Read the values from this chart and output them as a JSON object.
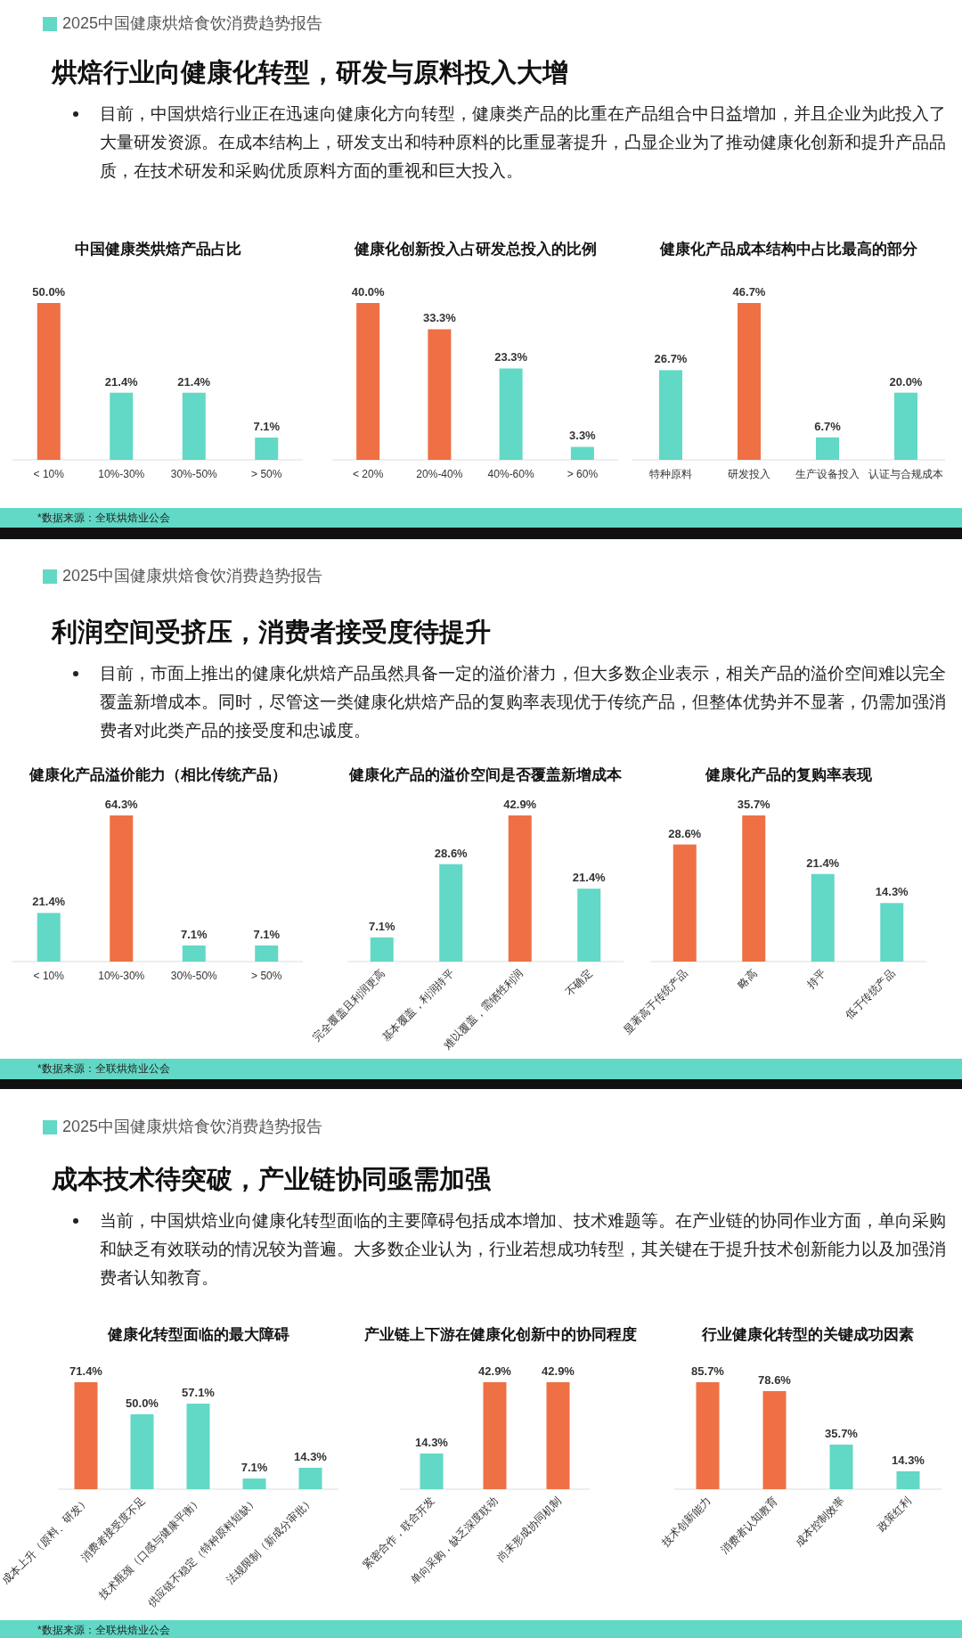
{
  "chart_data": [
    {
      "type": "other",
      "subtitle": "2025中国健康烘焙食饮消费趋势报告",
      "title": "烘焙行业向健康化转型，研发与原料投入大增",
      "annotations": [
        "目前，中国烘焙行业正在迅速向健康化方向转型，健康类产品的比重在产品组合中日益增加，并且企业为此投入了大量研发资源。在成本结构上，研发支出和特种原料的比重显著提升，凸显企业为了推动健康化创新和提升产品品质，在技术研发和采购优质原料方面的重视和巨大投入。",
        "*数据来源：全联烘焙业公会"
      ]
    },
    {
      "type": "bar",
      "title": "中国健康类烘焙产品占比",
      "categories": [
        "< 10%",
        "10%-30%",
        "30%-50%",
        "> 50%"
      ],
      "values": [
        50.0,
        21.4,
        21.4,
        7.1
      ],
      "value_labels": [
        "50.0%",
        "21.4%",
        "21.4%",
        "7.1%"
      ],
      "colors": [
        "#ee7044",
        "#62d8c6",
        "#62d8c6",
        "#62d8c6"
      ]
    },
    {
      "type": "bar",
      "title": "健康化创新投入占研发总投入的比例",
      "categories": [
        "< 20%",
        "20%-40%",
        "40%-60%",
        "> 60%"
      ],
      "values": [
        40.0,
        33.3,
        23.3,
        3.3
      ],
      "value_labels": [
        "40.0%",
        "33.3%",
        "23.3%",
        "3.3%"
      ],
      "colors": [
        "#ee7044",
        "#ee7044",
        "#62d8c6",
        "#62d8c6"
      ]
    },
    {
      "type": "bar",
      "title": "健康化产品成本结构中占比最高的部分",
      "categories": [
        "特种原料",
        "研发投入",
        "生产设备投入",
        "认证与合规成本"
      ],
      "values": [
        26.7,
        46.7,
        6.7,
        20.0
      ],
      "value_labels": [
        "26.7%",
        "46.7%",
        "6.7%",
        "20.0%"
      ],
      "colors": [
        "#62d8c6",
        "#ee7044",
        "#62d8c6",
        "#62d8c6"
      ]
    },
    {
      "type": "other",
      "subtitle": "2025中国健康烘焙食饮消费趋势报告",
      "title": "利润空间受挤压，消费者接受度待提升",
      "annotations": [
        "目前，市面上推出的健康化烘焙产品虽然具备一定的溢价潜力，但大多数企业表示，相关产品的溢价空间难以完全覆盖新增成本。同时，尽管这一类健康化烘焙产品的复购率表现优于传统产品，但整体优势并不显著，仍需加强消费者对此类产品的接受度和忠诚度。",
        "*数据来源：全联烘焙业公会"
      ]
    },
    {
      "type": "bar",
      "title": "健康化产品溢价能力（相比传统产品）",
      "categories": [
        "< 10%",
        "10%-30%",
        "30%-50%",
        "> 50%"
      ],
      "values": [
        21.4,
        64.3,
        7.1,
        7.1
      ],
      "value_labels": [
        "21.4%",
        "64.3%",
        "7.1%",
        "7.1%"
      ],
      "colors": [
        "#62d8c6",
        "#ee7044",
        "#62d8c6",
        "#62d8c6"
      ]
    },
    {
      "type": "bar",
      "title": "健康化产品的溢价空间是否覆盖新增成本",
      "categories": [
        "完全覆盖且利润更高",
        "基本覆盖，利润持平",
        "难以覆盖，需牺牲利润",
        "不确定"
      ],
      "values": [
        7.1,
        28.6,
        42.9,
        21.4
      ],
      "value_labels": [
        "7.1%",
        "28.6%",
        "42.9%",
        "21.4%"
      ],
      "colors": [
        "#62d8c6",
        "#62d8c6",
        "#ee7044",
        "#62d8c6"
      ]
    },
    {
      "type": "bar",
      "title": "健康化产品的复购率表现",
      "categories": [
        "显著高于传统产品",
        "略高",
        "持平",
        "低于传统产品"
      ],
      "values": [
        28.6,
        35.7,
        21.4,
        14.3
      ],
      "value_labels": [
        "28.6%",
        "35.7%",
        "21.4%",
        "14.3%"
      ],
      "colors": [
        "#ee7044",
        "#ee7044",
        "#62d8c6",
        "#62d8c6"
      ]
    },
    {
      "type": "other",
      "subtitle": "2025中国健康烘焙食饮消费趋势报告",
      "title": "成本技术待突破，产业链协同亟需加强",
      "annotations": [
        "当前，中国烘焙业向健康化转型面临的主要障碍包括成本增加、技术难题等。在产业链的协同作业方面，单向采购和缺乏有效联动的情况较为普遍。大多数企业认为，行业若想成功转型，其关键在于提升技术创新能力以及加强消费者认知教育。",
        "*数据来源：全联烘焙业公会"
      ]
    },
    {
      "type": "bar",
      "title": "健康化转型面临的最大障碍",
      "categories": [
        "成本上升（原料、研发）",
        "消费者接受度不足",
        "技术瓶颈（口感与健康平衡）",
        "供应链不稳定（特种原料短缺）",
        "法规限制（新成分审批）"
      ],
      "values": [
        71.4,
        50.0,
        57.1,
        7.1,
        14.3
      ],
      "value_labels": [
        "71.4%",
        "50.0%",
        "57.1%",
        "7.1%",
        "14.3%"
      ],
      "colors": [
        "#ee7044",
        "#62d8c6",
        "#62d8c6",
        "#62d8c6",
        "#62d8c6"
      ]
    },
    {
      "type": "bar",
      "title": "产业链上下游在健康化创新中的协同程度",
      "categories": [
        "紧密合作，联合开发",
        "单向采购，缺乏深度联动",
        "尚未形成协同机制"
      ],
      "values": [
        14.3,
        42.9,
        42.9
      ],
      "value_labels": [
        "14.3%",
        "42.9%",
        "42.9%"
      ],
      "colors": [
        "#62d8c6",
        "#ee7044",
        "#ee7044"
      ]
    },
    {
      "type": "bar",
      "title": "行业健康化转型的关键成功因素",
      "categories": [
        "技术创新能力",
        "消费者认知教育",
        "成本控制效率",
        "政策红利"
      ],
      "values": [
        85.7,
        78.6,
        35.7,
        14.3
      ],
      "value_labels": [
        "85.7%",
        "78.6%",
        "35.7%",
        "14.3%"
      ],
      "colors": [
        "#ee7044",
        "#ee7044",
        "#62d8c6",
        "#62d8c6"
      ]
    }
  ]
}
